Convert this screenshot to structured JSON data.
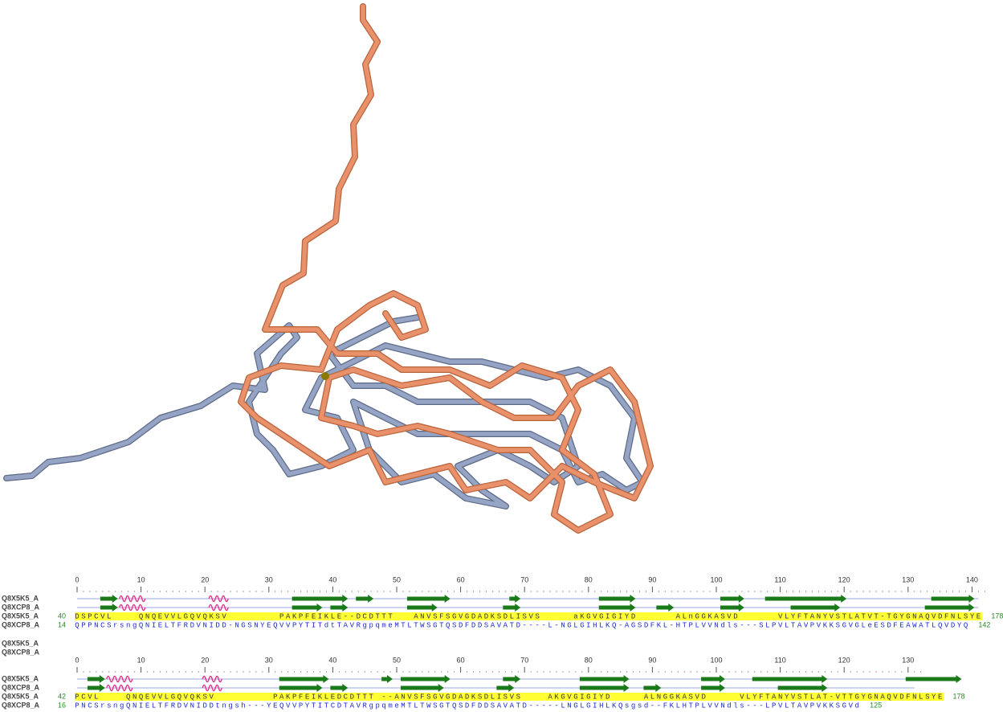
{
  "alignment": {
    "blocks": [
      {
        "ruler": [
          0,
          10,
          20,
          30,
          40,
          50,
          60,
          70,
          80,
          90,
          100,
          110,
          120,
          130,
          140
        ],
        "ss_names": [
          "Q8X5K5_A",
          "Q8XCP8_A"
        ],
        "rows": [
          {
            "name": "Q8X5K5_A",
            "start": "40",
            "sequence": "DSPCVL    QNQEVVLGQVQKSV        PAKPFEIKLE--DCDTTT   ANVSFSGVGDADKSDLISVS     aKGVGIGIYD      ALnGGKASVD      VLYFTANYVSTLATVT-TGYGNAQVDFNLSYE",
            "end": "178"
          },
          {
            "name": "Q8XCP8_A",
            "start": "14",
            "sequence": "QPPNCSrsngQNIELTFRDVNIDD-NGSNYEQVVPYTITdtTAVRgpqmeMTLTWSGTQSDFDDSAVATD----L-NGLGIHLKQ-AGSDFKL-HTPLVVNdls---SLPVLTAVPVKKSGVGLeESDFEAWATLQVDYQ",
            "end": "142"
          }
        ]
      },
      {
        "names": [
          "Q8X5K5_A",
          "Q8XCP8_A"
        ],
        "ruler": [
          0,
          10,
          20,
          30,
          40,
          50,
          60,
          70,
          80,
          90,
          100,
          110,
          120,
          130
        ],
        "ss_names": [
          "Q8X5K5_A",
          "Q8XCP8_A"
        ],
        "rows": [
          {
            "name": "Q8X5K5_A",
            "start": "42",
            "sequence": "PCVL    QNQEVVLGQVQKSV         PAKPFEIKLEDCDTTT --ANVSFSGVGDADKSDLISVS    AKGVGIGIYD     ALNGGKASVD     VLYFTANYVSTLAT-VTTGYGNAQVDFNLSYE",
            "end": "178"
          },
          {
            "name": "Q8XCP8_A",
            "start": "16",
            "sequence": "PNCSrsngQNIELTFRDVNIDDtngsh---YEQVVPYTITCDTAVRgpqmeMTLTWSGTQSDFDDSAVATD-----LNGLGIHLKQsgsd--FKLHTPLVVNdls---LPVLTAVPVKKSGVd",
            "end": "125"
          }
        ]
      }
    ]
  }
}
